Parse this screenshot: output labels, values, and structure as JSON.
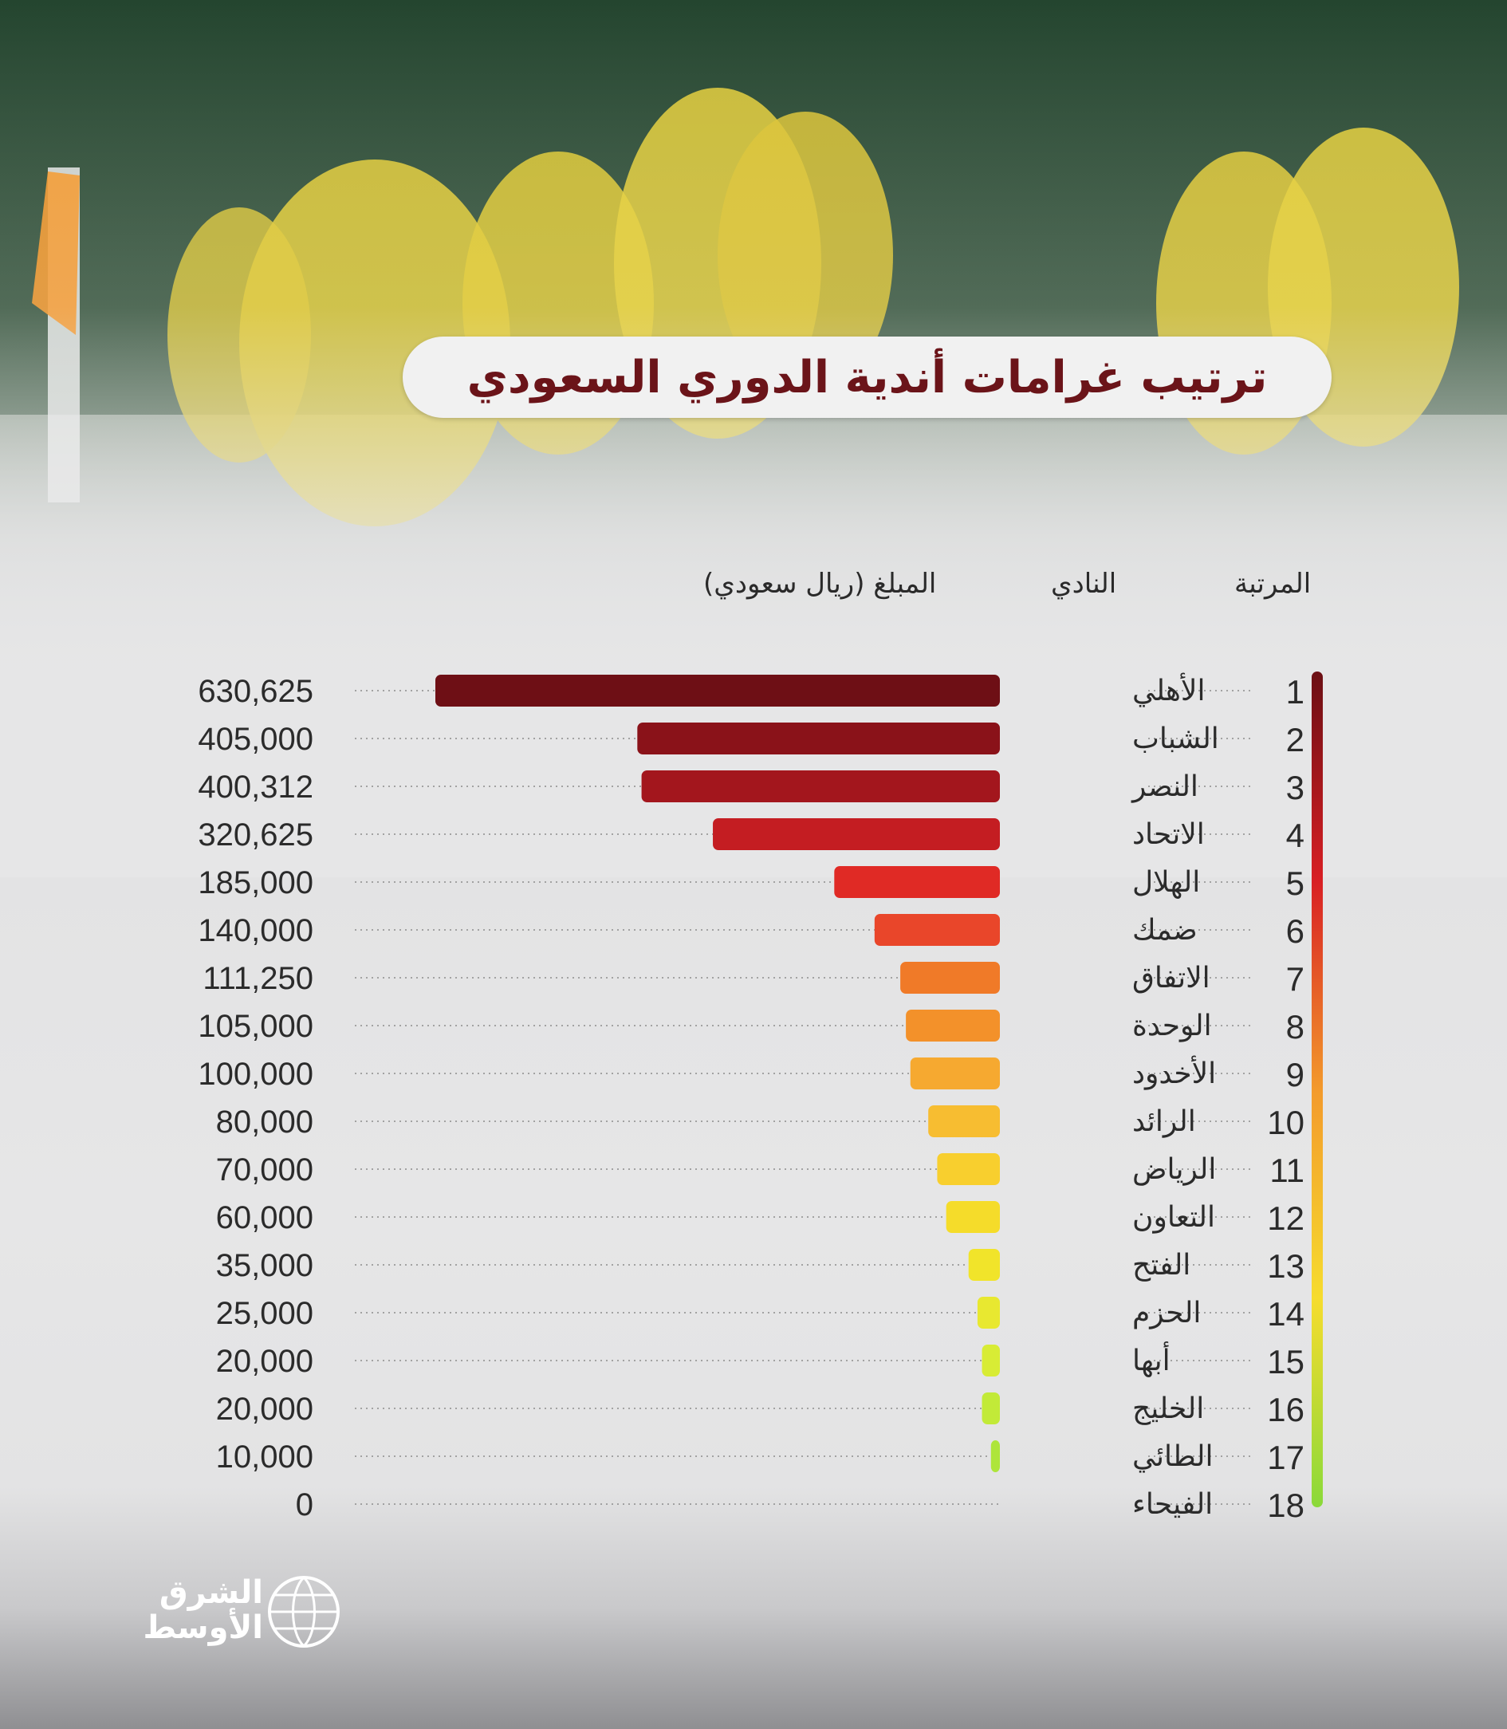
{
  "title": "ترتيب غرامات أندية الدوري السعودي",
  "headers": {
    "rank": "المرتبة",
    "club": "النادي",
    "amount": "المبلغ (ريال سعودي)"
  },
  "brand": {
    "line1": "الشرق",
    "line2": "الأوسط"
  },
  "colors": {
    "title": "#6b1419",
    "gradient_top": "#6b0f14",
    "gradient_bottom": "#8ad93a"
  },
  "chart_data": {
    "type": "bar",
    "orientation": "horizontal",
    "categories": [
      "الأهلي",
      "الشباب",
      "النصر",
      "الاتحاد",
      "الهلال",
      "ضمك",
      "الاتفاق",
      "الوحدة",
      "الأخدود",
      "الرائد",
      "الرياض",
      "التعاون",
      "الفتح",
      "الحزم",
      "أبها",
      "الخليج",
      "الطائي",
      "الفيحاء"
    ],
    "ranks": [
      "1",
      "2",
      "3",
      "4",
      "5",
      "6",
      "7",
      "8",
      "9",
      "10",
      "11",
      "12",
      "13",
      "14",
      "15",
      "16",
      "17",
      "18"
    ],
    "values": [
      630625,
      405000,
      400312,
      320625,
      185000,
      140000,
      111250,
      105000,
      100000,
      80000,
      70000,
      60000,
      35000,
      25000,
      20000,
      20000,
      10000,
      0
    ],
    "value_labels": [
      "630,625",
      "405,000",
      "400,312",
      "320,625",
      "185,000",
      "140,000",
      "111,250",
      "105,000",
      "100,000",
      "80,000",
      "70,000",
      "60,000",
      "35,000",
      "25,000",
      "20,000",
      "20,000",
      "10,000",
      "0"
    ],
    "bar_colors": [
      "#6e0f15",
      "#8a1219",
      "#a3161d",
      "#c41d22",
      "#e02a25",
      "#e9462a",
      "#f07a28",
      "#f3912a",
      "#f6a930",
      "#f7bd31",
      "#f8cf2e",
      "#f5dc2a",
      "#f1e42a",
      "#e8e830",
      "#d8ec35",
      "#c2ea38",
      "#aee53a",
      "#9bdf3a"
    ],
    "xlim": [
      0,
      630625
    ],
    "grid": false,
    "legend": "none"
  }
}
